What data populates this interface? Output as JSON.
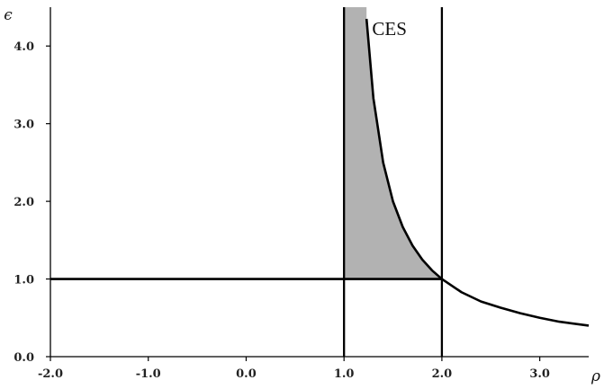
{
  "chart_data": {
    "type": "line",
    "xlabel": "ρ",
    "ylabel": "ϵ",
    "xlim": [
      -2.0,
      3.5
    ],
    "ylim": [
      0.0,
      4.5
    ],
    "x_ticks": [
      "-2.0",
      "-1.0",
      "0.0",
      "1.0",
      "2.0",
      "3.0"
    ],
    "y_ticks": [
      "0.0",
      "1.0",
      "2.0",
      "3.0",
      "4.0"
    ],
    "series": [
      {
        "name": "CES",
        "function": "epsilon = 1 / (rho - 1)",
        "x": [
          1.23,
          1.3,
          1.4,
          1.5,
          1.6,
          1.7,
          1.8,
          1.9,
          2.0,
          2.2,
          2.4,
          2.6,
          2.8,
          3.0,
          3.2,
          3.5
        ],
        "y": [
          4.35,
          3.33,
          2.5,
          2.0,
          1.67,
          1.43,
          1.25,
          1.11,
          1.0,
          0.83,
          0.71,
          0.63,
          0.56,
          0.5,
          0.45,
          0.4
        ]
      }
    ],
    "reference_lines": {
      "horizontal_y": [
        1.0
      ],
      "vertical_x": [
        1.0,
        2.0
      ]
    },
    "shaded_region": {
      "x_range": [
        1.0,
        2.0
      ],
      "lower_y": 1.0,
      "upper": "CES",
      "color": "#b2b2b2"
    },
    "annotations": [
      {
        "text": "CES",
        "x": 1.25,
        "y": 4.35
      }
    ],
    "grid": false,
    "colors": {
      "line": "#000000",
      "background": "#ffffff"
    }
  }
}
